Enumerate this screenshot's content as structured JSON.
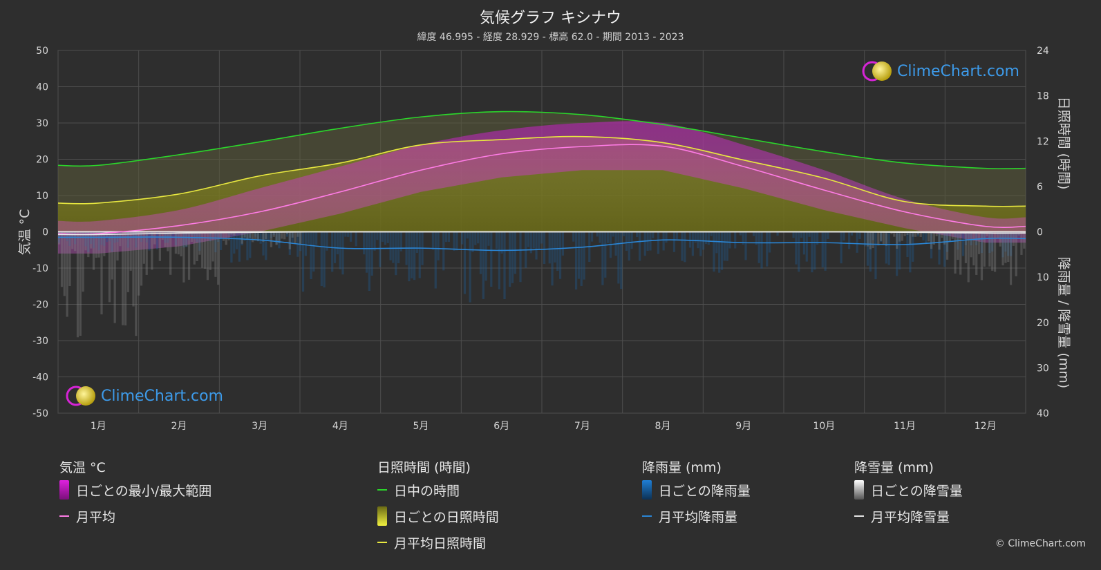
{
  "title": "気候グラフ キシナウ",
  "subtitle": "緯度 46.995 - 経度 28.929 - 標高 62.0 - 期間 2013 - 2023",
  "axes": {
    "left_label": "気温 °C",
    "right_top_label": "日照時間 (時間)",
    "right_bottom_label": "降雨量 / 降雪量 (mm)"
  },
  "legend": {
    "temperature": {
      "heading": "気温 °C",
      "range_label": "日ごとの最小/最大範囲",
      "mean_label": "月平均"
    },
    "sunshine": {
      "heading": "日照時間 (時間)",
      "daylight_label": "日中の時間",
      "daily_label": "日ごとの日照時間",
      "mean_label": "月平均日照時間"
    },
    "rain": {
      "heading": "降雨量 (mm)",
      "daily_label": "日ごとの降雨量",
      "mean_label": "月平均降雨量"
    },
    "snow": {
      "heading": "降雪量 (mm)",
      "daily_label": "日ごとの降雪量",
      "mean_label": "月平均降雪量"
    }
  },
  "logo_text": "ClimeChart.com",
  "copyright": "© ClimeChart.com",
  "colors": {
    "daylight": "#2bd62b",
    "sunshine_mean": "#e8e840",
    "temp_mean": "#ff7ce6",
    "temp_range": "#d018d0",
    "rain": "#2a86d6",
    "snow": "#e6e6e6",
    "sunshine_fill": "#8c8c20"
  },
  "chart_data": {
    "type": "line",
    "categories": [
      "1月",
      "2月",
      "3月",
      "4月",
      "5月",
      "6月",
      "7月",
      "8月",
      "9月",
      "10月",
      "11月",
      "12月"
    ],
    "y_left": {
      "label": "気温 °C",
      "ylim": [
        -50,
        50
      ],
      "ticks": [
        50,
        40,
        30,
        20,
        10,
        0,
        -10,
        -20,
        -30,
        -40,
        -50
      ]
    },
    "y_right_sun": {
      "label": "日照時間 (時間)",
      "ylim": [
        0,
        24
      ],
      "ticks": [
        24,
        18,
        12,
        6,
        0
      ]
    },
    "y_right_precip": {
      "label": "降雨量 / 降雪量 (mm)",
      "ylim": [
        0,
        40
      ],
      "ticks": [
        0,
        10,
        20,
        30,
        40
      ]
    },
    "series": [
      {
        "name": "日中の時間",
        "axis": "sun",
        "values": [
          8.8,
          10.2,
          11.9,
          13.7,
          15.2,
          15.9,
          15.5,
          14.2,
          12.4,
          10.6,
          9.1,
          8.4
        ]
      },
      {
        "name": "月平均日照時間",
        "axis": "sun",
        "values": [
          3.8,
          5.0,
          7.4,
          9.1,
          11.5,
          12.2,
          12.6,
          11.8,
          9.5,
          7.1,
          4.0,
          3.4
        ]
      },
      {
        "name": "月平均",
        "axis": "temp",
        "values": [
          -0.5,
          1.7,
          5.5,
          11.0,
          17.0,
          21.5,
          23.5,
          23.6,
          18.0,
          11.5,
          5.5,
          1.5
        ]
      },
      {
        "name": "月平均降雨量",
        "axis": "precip",
        "values": [
          1.2,
          1.2,
          1.8,
          3.6,
          3.6,
          4.1,
          3.4,
          1.8,
          2.4,
          2.4,
          2.8,
          1.5
        ]
      },
      {
        "name": "月平均降雪量",
        "axis": "precip",
        "values": [
          0.6,
          0.3,
          0.1,
          0.0,
          0.0,
          0.0,
          0.0,
          0.0,
          0.0,
          0.0,
          0.1,
          0.3
        ]
      }
    ],
    "daily_temp_range": {
      "min": [
        -6,
        -4,
        0,
        5,
        11,
        15,
        17,
        17,
        12,
        6,
        1,
        -3
      ],
      "max": [
        3,
        6,
        12,
        18,
        24,
        28,
        30,
        30,
        24,
        17,
        9,
        4
      ]
    },
    "grid": true
  }
}
